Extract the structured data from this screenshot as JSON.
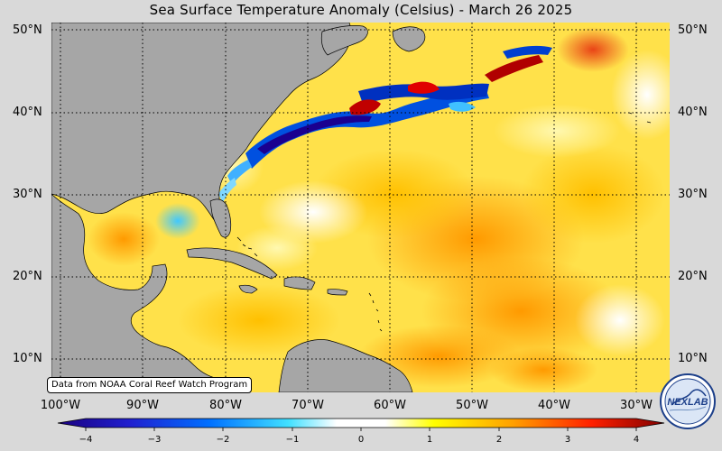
{
  "title": "Sea Surface Temperature Anomaly (Celsius) - March 26 2025",
  "credit": "Data from NOAA Coral Reef Watch Program",
  "logo_text": "NEXLAB",
  "lat_labels": [
    "50°N",
    "40°N",
    "30°N",
    "20°N",
    "10°N"
  ],
  "lat_labels_right": [
    "50°N",
    "40°N",
    "30°N",
    "20°N",
    "10°N"
  ],
  "lon_labels": [
    "100°W",
    "90°W",
    "80°W",
    "70°W",
    "60°W",
    "50°W",
    "40°W",
    "30°W"
  ],
  "colorbar": {
    "ticks": [
      "−4",
      "−3",
      "−2",
      "−1",
      "0",
      "1",
      "2",
      "3",
      "4"
    ],
    "min": -4.5,
    "max": 4.5,
    "stops": [
      "#1a0080",
      "#0040ff",
      "#00c8ff",
      "#ffffff",
      "#ffffff",
      "#ffff00",
      "#ffb000",
      "#ff3000",
      "#800000"
    ]
  },
  "colors": {
    "land": "#a6a6a6",
    "ocean_base": "#ffe14a",
    "background": "#d9d9d9"
  }
}
